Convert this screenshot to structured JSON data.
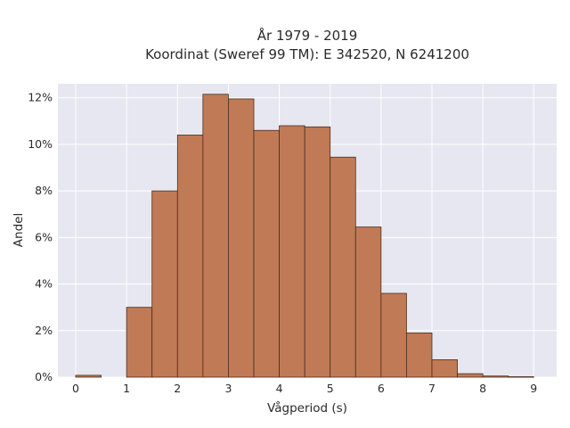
{
  "chart_data": {
    "type": "bar",
    "title_lines": [
      "År 1979 - 2019",
      "Koordinat (Sweref 99 TM): E 342520, N 6241200"
    ],
    "xlabel": "Vågperiod (s)",
    "ylabel": "Andel",
    "bin_width": 0.5,
    "bins": [
      {
        "start": 0.0,
        "value": 0.08
      },
      {
        "start": 0.5,
        "value": 0.0
      },
      {
        "start": 1.0,
        "value": 3.0
      },
      {
        "start": 1.5,
        "value": 8.0
      },
      {
        "start": 2.0,
        "value": 10.4
      },
      {
        "start": 2.5,
        "value": 12.15
      },
      {
        "start": 3.0,
        "value": 11.95
      },
      {
        "start": 3.5,
        "value": 10.6
      },
      {
        "start": 4.0,
        "value": 10.8
      },
      {
        "start": 4.5,
        "value": 10.75
      },
      {
        "start": 5.0,
        "value": 9.45
      },
      {
        "start": 5.5,
        "value": 6.45
      },
      {
        "start": 6.0,
        "value": 3.6
      },
      {
        "start": 6.5,
        "value": 1.9
      },
      {
        "start": 7.0,
        "value": 0.75
      },
      {
        "start": 7.5,
        "value": 0.15
      },
      {
        "start": 8.0,
        "value": 0.05
      },
      {
        "start": 8.5,
        "value": 0.02
      }
    ],
    "xlim": [
      -0.35,
      9.45
    ],
    "ylim": [
      0,
      12.6
    ],
    "xticks": [
      0,
      1,
      2,
      3,
      4,
      5,
      6,
      7,
      8,
      9
    ],
    "yticks": [
      0,
      2,
      4,
      6,
      8,
      10,
      12
    ],
    "ytick_suffix": "%",
    "grid": true,
    "colors": {
      "bar_fill": "#c07a55",
      "bar_stroke": "#4a2e1f",
      "plot_bg": "#e6e7f0",
      "grid": "#ffffff"
    }
  }
}
